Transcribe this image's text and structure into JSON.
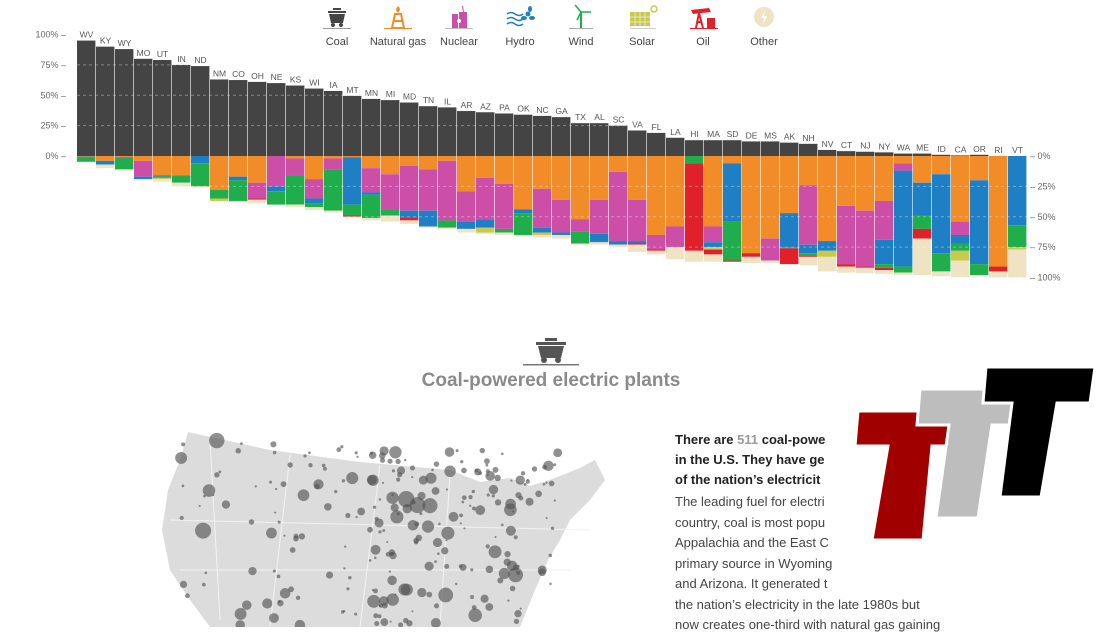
{
  "legend": [
    {
      "label": "Coal",
      "icon": "coal-cart-icon",
      "color": "#444444"
    },
    {
      "label": "Natural gas",
      "icon": "gas-derrick-icon",
      "color": "#f28c28"
    },
    {
      "label": "Nuclear",
      "icon": "nuclear-plant-icon",
      "color": "#cc4ea6"
    },
    {
      "label": "Hydro",
      "icon": "hydro-waves-icon",
      "color": "#1f7fc4"
    },
    {
      "label": "Wind",
      "icon": "wind-turbine-icon",
      "color": "#1fae4b"
    },
    {
      "label": "Solar",
      "icon": "solar-panel-icon",
      "color": "#c9c94a"
    },
    {
      "label": "Oil",
      "icon": "oil-pump-icon",
      "color": "#e0202a"
    },
    {
      "label": "Other",
      "icon": "other-bolt-icon",
      "color": "#efe3c4"
    }
  ],
  "chart_data": {
    "type": "bar",
    "stacking": "coal above zero line, remaining sources stacked below zero; each state totals 100%",
    "left_axis_ticks": [
      "100%",
      "75%",
      "50%",
      "25%",
      "0%"
    ],
    "right_axis_ticks": [
      "0%",
      "25%",
      "50%",
      "75%",
      "100%"
    ],
    "grid": true,
    "source_order": [
      "Coal",
      "Natural gas",
      "Nuclear",
      "Hydro",
      "Wind",
      "Solar",
      "Oil",
      "Other"
    ],
    "states": [
      {
        "state": "WV",
        "values": [
          95,
          0.5,
          0,
          1,
          3,
          0,
          0.3,
          0.2
        ]
      },
      {
        "state": "KY",
        "values": [
          90,
          4,
          0,
          3,
          0,
          0,
          0,
          3
        ]
      },
      {
        "state": "WY",
        "values": [
          88,
          1,
          0,
          1,
          9,
          0,
          0,
          1
        ]
      },
      {
        "state": "MO",
        "values": [
          80,
          4,
          13,
          2,
          0,
          0,
          0,
          1
        ]
      },
      {
        "state": "UT",
        "values": [
          79,
          16,
          0,
          1,
          1,
          1,
          0,
          2
        ]
      },
      {
        "state": "IN",
        "values": [
          75,
          16,
          0,
          0,
          6,
          0,
          0,
          3
        ]
      },
      {
        "state": "ND",
        "values": [
          74,
          0,
          0,
          6,
          19,
          0,
          0,
          1
        ]
      },
      {
        "state": "NM",
        "values": [
          63,
          28,
          0,
          0,
          7,
          2,
          0,
          0
        ]
      },
      {
        "state": "CO",
        "values": [
          62.5,
          17,
          0,
          3,
          17,
          0.5,
          0,
          0
        ]
      },
      {
        "state": "OH",
        "values": [
          61,
          22,
          13,
          0,
          0,
          0,
          1,
          3
        ]
      },
      {
        "state": "NE",
        "values": [
          60,
          0,
          25,
          4,
          11,
          0,
          0,
          0
        ]
      },
      {
        "state": "KS",
        "values": [
          58,
          2,
          14,
          0,
          24,
          0,
          0,
          2
        ]
      },
      {
        "state": "WI",
        "values": [
          55.5,
          19,
          16,
          4,
          3,
          0,
          0,
          2.5
        ]
      },
      {
        "state": "IA",
        "values": [
          53.5,
          2,
          9,
          0,
          34,
          0,
          0,
          1.5
        ]
      },
      {
        "state": "MT",
        "values": [
          49.5,
          1,
          0,
          39,
          9,
          0,
          1,
          0.5
        ]
      },
      {
        "state": "MN",
        "values": [
          47,
          10,
          20,
          2,
          19,
          0,
          0,
          2
        ]
      },
      {
        "state": "MI",
        "values": [
          46,
          15,
          29,
          0,
          5,
          0,
          0,
          5
        ]
      },
      {
        "state": "MD",
        "values": [
          44,
          8,
          37,
          6,
          0,
          0,
          2,
          3
        ]
      },
      {
        "state": "TN",
        "values": [
          41,
          11,
          34,
          13,
          0,
          0,
          0,
          1
        ]
      },
      {
        "state": "IL",
        "values": [
          40,
          4,
          49,
          0,
          6,
          0,
          0,
          1
        ]
      },
      {
        "state": "AR",
        "values": [
          37,
          29,
          25,
          6,
          0,
          0,
          0,
          3
        ]
      },
      {
        "state": "AZ",
        "values": [
          36,
          18,
          34,
          7,
          0,
          4,
          0,
          1
        ]
      },
      {
        "state": "PA",
        "values": [
          35,
          23,
          37,
          0,
          3,
          0,
          0,
          2
        ]
      },
      {
        "state": "OK",
        "values": [
          34,
          44,
          0,
          3,
          18,
          0,
          0,
          1
        ]
      },
      {
        "state": "NC",
        "values": [
          33,
          27,
          32,
          4,
          0,
          2,
          0,
          2
        ]
      },
      {
        "state": "GA",
        "values": [
          32,
          36,
          27,
          2,
          0,
          0,
          0,
          3
        ]
      },
      {
        "state": "TX",
        "values": [
          27,
          52,
          10,
          0,
          10,
          0,
          0,
          1
        ]
      },
      {
        "state": "AL",
        "values": [
          27,
          36,
          28,
          7,
          0,
          0,
          0,
          2
        ]
      },
      {
        "state": "SC",
        "values": [
          25,
          13,
          57,
          3,
          0,
          0,
          0,
          2
        ]
      },
      {
        "state": "VA",
        "values": [
          21,
          36,
          34,
          2,
          0,
          0,
          1,
          6
        ]
      },
      {
        "state": "FL",
        "values": [
          19,
          65,
          12,
          0,
          0,
          0,
          1,
          3
        ]
      },
      {
        "state": "LA",
        "values": [
          15,
          58,
          17,
          0,
          0,
          0,
          0,
          10
        ]
      },
      {
        "state": "HI",
        "values": [
          13,
          0,
          0,
          0,
          6,
          0,
          72,
          9
        ]
      },
      {
        "state": "MA",
        "values": [
          13,
          58,
          13,
          4,
          0,
          2,
          4,
          6
        ]
      },
      {
        "state": "SD",
        "values": [
          13,
          6,
          0,
          48,
          32,
          0,
          1,
          0
        ]
      },
      {
        "state": "DE",
        "values": [
          12,
          80,
          0,
          0,
          0,
          0,
          3,
          5
        ]
      },
      {
        "state": "MS",
        "values": [
          12,
          68,
          18,
          0,
          0,
          0,
          0,
          2
        ]
      },
      {
        "state": "AK",
        "values": [
          11,
          47,
          0,
          28,
          1,
          0,
          13,
          0
        ]
      },
      {
        "state": "NH",
        "values": [
          10,
          24,
          49,
          7,
          2,
          0,
          1,
          7
        ]
      },
      {
        "state": "NV",
        "values": [
          5,
          70,
          0,
          8,
          0,
          5,
          0,
          12
        ]
      },
      {
        "state": "CT",
        "values": [
          4,
          41,
          48,
          0,
          0,
          0,
          2,
          5
        ]
      },
      {
        "state": "NJ",
        "values": [
          3.5,
          45,
          46,
          0,
          0,
          0,
          1,
          4.5
        ]
      },
      {
        "state": "NY",
        "values": [
          3,
          37,
          32,
          20,
          3,
          0,
          2,
          3
        ]
      },
      {
        "state": "WA",
        "values": [
          2,
          6,
          6,
          79,
          5,
          0,
          0,
          2
        ]
      },
      {
        "state": "ME",
        "values": [
          2,
          22,
          0,
          27,
          11,
          0,
          8,
          30
        ]
      },
      {
        "state": "ID",
        "values": [
          1,
          15,
          0,
          65,
          15,
          0,
          0,
          4
        ]
      },
      {
        "state": "CA",
        "values": [
          0.5,
          54,
          11,
          7,
          6,
          8,
          0,
          13.5
        ]
      },
      {
        "state": "OR",
        "values": [
          1,
          20,
          0,
          69,
          9,
          0,
          0,
          1
        ]
      },
      {
        "state": "RI",
        "values": [
          0,
          91,
          0,
          0,
          0,
          0,
          4,
          5
        ]
      },
      {
        "state": "VT",
        "values": [
          0,
          0,
          0,
          57,
          18,
          2,
          0,
          23
        ]
      }
    ]
  },
  "section": {
    "icon": "coal-cart-icon",
    "title": "Coal-powered electric plants",
    "lead_before": "There are ",
    "lead_number": "511",
    "lead_after_1": " coal-powe",
    "lead_line_2": "in the U.S. They have ge",
    "lead_line_3": "of the nation’s electricit",
    "body_lines": [
      "The leading fuel for electri",
      "country, coal is most popu",
      "Appalachia and the East C",
      "primary source in Wyoming",
      "and Arizona. It generated t",
      "the nation’s electricity in the late 1980s but",
      "now creates one-third with natural gas gaining"
    ]
  },
  "logo": {
    "text": "TTT",
    "colors": [
      "#a00000",
      "#bdbdbd",
      "#000000"
    ]
  }
}
